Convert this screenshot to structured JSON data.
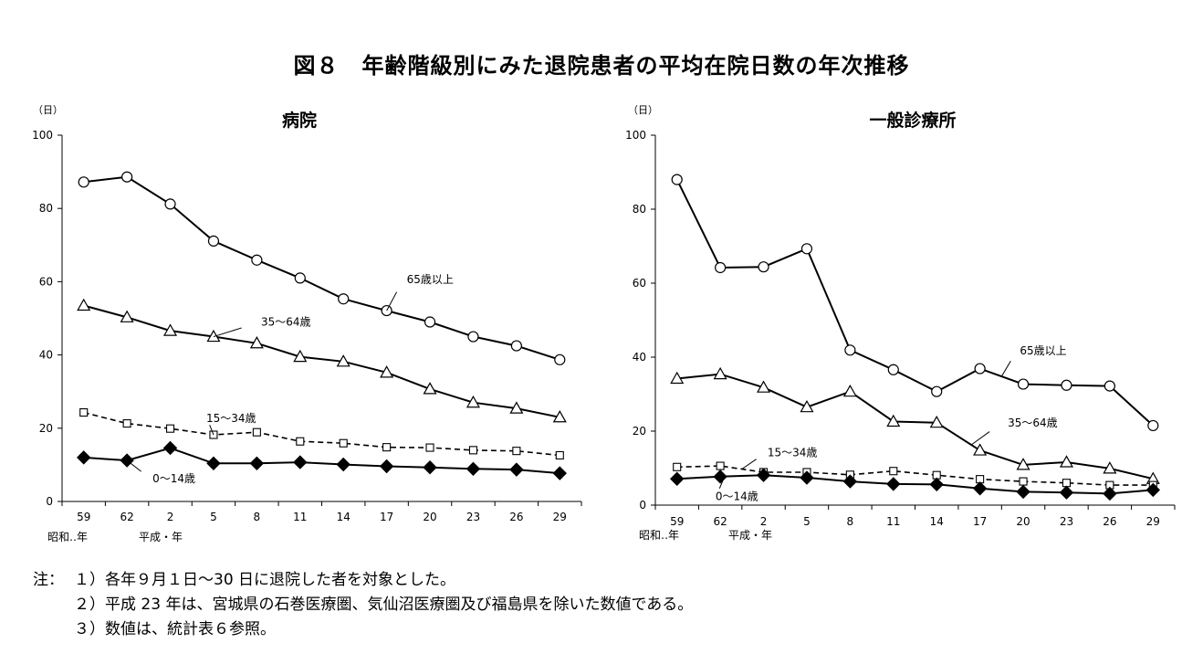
{
  "figure": {
    "title": "図８　年齢階級別にみた退院患者の平均在院日数の年次推移"
  },
  "chart_data": [
    {
      "type": "line",
      "title": "病院",
      "ylabel": "（日）",
      "ylim": [
        0,
        100
      ],
      "yticks": [
        "0",
        "20",
        "40",
        "60",
        "80",
        "100"
      ],
      "categories": [
        "59",
        "62",
        "2",
        "5",
        "8",
        "11",
        "14",
        "17",
        "20",
        "23",
        "26",
        "29"
      ],
      "era_labels": [
        "昭和‥年",
        "平成・年"
      ],
      "series": [
        {
          "name": "65歳以上",
          "marker": "circle",
          "dash": false,
          "values": [
            87.2,
            88.6,
            81.2,
            71.1,
            65.9,
            61.0,
            55.3,
            52.1,
            49.0,
            45.0,
            42.5,
            38.7
          ]
        },
        {
          "name": "35～64歳",
          "marker": "triangle",
          "dash": false,
          "values": [
            53.5,
            50.3,
            46.6,
            45.0,
            43.2,
            39.5,
            38.2,
            35.2,
            30.7,
            27.0,
            25.4,
            23.0
          ]
        },
        {
          "name": "15～34歳",
          "marker": "square",
          "dash": true,
          "values": [
            24.3,
            21.3,
            19.9,
            18.2,
            18.9,
            16.4,
            15.9,
            14.8,
            14.7,
            14.0,
            13.8,
            12.6
          ]
        },
        {
          "name": "0～14歳",
          "marker": "diamond",
          "dash": false,
          "values": [
            12.0,
            11.2,
            14.6,
            10.4,
            10.4,
            10.7,
            10.1,
            9.6,
            9.3,
            8.9,
            8.7,
            7.7
          ]
        }
      ]
    },
    {
      "type": "line",
      "title": "一般診療所",
      "ylabel": "（日）",
      "ylim": [
        0,
        100
      ],
      "yticks": [
        "0",
        "20",
        "40",
        "60",
        "80",
        "100"
      ],
      "categories": [
        "59",
        "62",
        "2",
        "5",
        "8",
        "11",
        "14",
        "17",
        "20",
        "23",
        "26",
        "29"
      ],
      "era_labels": [
        "昭和‥年",
        "平成・年"
      ],
      "series": [
        {
          "name": "65歳以上",
          "marker": "circle",
          "dash": false,
          "values": [
            88.0,
            64.2,
            64.4,
            69.3,
            41.9,
            36.6,
            30.7,
            36.9,
            32.7,
            32.4,
            32.2,
            21.5
          ]
        },
        {
          "name": "35～64歳",
          "marker": "triangle",
          "dash": false,
          "values": [
            34.2,
            35.4,
            31.8,
            26.5,
            30.7,
            22.6,
            22.3,
            14.8,
            10.9,
            11.6,
            9.9,
            7.1
          ]
        },
        {
          "name": "15～34歳",
          "marker": "square",
          "dash": true,
          "values": [
            10.3,
            10.6,
            8.9,
            8.9,
            8.2,
            9.2,
            8.1,
            7.0,
            6.4,
            6.0,
            5.4,
            5.4
          ]
        },
        {
          "name": "0～14歳",
          "marker": "diamond",
          "dash": false,
          "values": [
            7.1,
            7.7,
            8.1,
            7.4,
            6.4,
            5.7,
            5.6,
            4.5,
            3.6,
            3.4,
            3.1,
            4.1
          ]
        }
      ]
    }
  ],
  "notes": {
    "prefix": "注：",
    "lines": [
      "１）各年９月１日～30 日に退院した者を対象とした。",
      "２）平成 23 年は、宮城県の石巻医療圏、気仙沼医療圏及び福島県を除いた数値である。",
      "３）数値は、統計表６参照。"
    ]
  }
}
